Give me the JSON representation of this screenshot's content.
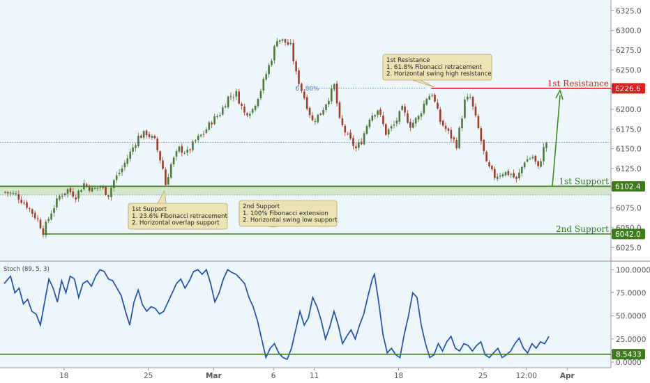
{
  "chart_data": {
    "type": "candlestick",
    "price_axis": {
      "ylim": [
        6012,
        6335
      ],
      "ticks": [
        6025.0,
        6050.0,
        6075.0,
        6100.0,
        6125.0,
        6150.0,
        6175.0,
        6200.0,
        6225.0,
        6250.0,
        6275.0,
        6300.0,
        6325.0
      ],
      "tick_labels": [
        "6025.0",
        "6050.0",
        "6075.0",
        "6100.0",
        "6125.0",
        "6150.0",
        "6175.0",
        "6200.0",
        "6225.0",
        "6250.0",
        "6275.0",
        "6300.0",
        "6325.0"
      ]
    },
    "x_axis": {
      "n_bars": 215,
      "labels": [
        {
          "text": "18",
          "bar": 22,
          "bold": false
        },
        {
          "text": "25",
          "bar": 53,
          "bold": false
        },
        {
          "text": "Mar",
          "bar": 77,
          "bold": true
        },
        {
          "text": "6",
          "bar": 99,
          "bold": false
        },
        {
          "text": "11",
          "bar": 114,
          "bold": false
        },
        {
          "text": "18",
          "bar": 145,
          "bold": false
        },
        {
          "text": "25",
          "bar": 176,
          "bold": false
        },
        {
          "text": "12:00",
          "bar": 192,
          "bold": false
        },
        {
          "text": "Apr",
          "bar": 207,
          "bold": true
        }
      ]
    },
    "price_path": [
      [
        0,
        6095
      ],
      [
        4,
        6092
      ],
      [
        8,
        6078
      ],
      [
        12,
        6060
      ],
      [
        14,
        6045
      ],
      [
        17,
        6070
      ],
      [
        20,
        6090
      ],
      [
        23,
        6098
      ],
      [
        26,
        6090
      ],
      [
        29,
        6106
      ],
      [
        32,
        6098
      ],
      [
        35,
        6102
      ],
      [
        38,
        6092
      ],
      [
        40,
        6110
      ],
      [
        43,
        6125
      ],
      [
        46,
        6145
      ],
      [
        49,
        6165
      ],
      [
        52,
        6170
      ],
      [
        55,
        6160
      ],
      [
        58,
        6125
      ],
      [
        59,
        6105
      ],
      [
        61,
        6130
      ],
      [
        64,
        6150
      ],
      [
        67,
        6145
      ],
      [
        70,
        6160
      ],
      [
        73,
        6170
      ],
      [
        76,
        6185
      ],
      [
        79,
        6195
      ],
      [
        82,
        6215
      ],
      [
        85,
        6220
      ],
      [
        88,
        6195
      ],
      [
        91,
        6200
      ],
      [
        94,
        6225
      ],
      [
        96,
        6245
      ],
      [
        98,
        6265
      ],
      [
        100,
        6290
      ],
      [
        103,
        6285
      ],
      [
        105,
        6280
      ],
      [
        107,
        6245
      ],
      [
        110,
        6215
      ],
      [
        113,
        6185
      ],
      [
        116,
        6195
      ],
      [
        119,
        6215
      ],
      [
        121,
        6230
      ],
      [
        123,
        6185
      ],
      [
        126,
        6165
      ],
      [
        129,
        6150
      ],
      [
        131,
        6160
      ],
      [
        134,
        6190
      ],
      [
        137,
        6200
      ],
      [
        140,
        6170
      ],
      [
        143,
        6180
      ],
      [
        146,
        6200
      ],
      [
        149,
        6180
      ],
      [
        152,
        6190
      ],
      [
        155,
        6215
      ],
      [
        157,
        6220
      ],
      [
        160,
        6185
      ],
      [
        163,
        6170
      ],
      [
        166,
        6155
      ],
      [
        169,
        6210
      ],
      [
        171,
        6215
      ],
      [
        174,
        6175
      ],
      [
        177,
        6130
      ],
      [
        180,
        6115
      ],
      [
        183,
        6120
      ],
      [
        186,
        6118
      ],
      [
        188,
        6110
      ],
      [
        191,
        6135
      ],
      [
        194,
        6140
      ],
      [
        196,
        6125
      ],
      [
        198,
        6150
      ],
      [
        199,
        6158
      ]
    ],
    "stoch": {
      "name": "Stoch (89, 5, 3)",
      "ylim": [
        -3,
        107
      ],
      "ticks": [
        0.0,
        25.0,
        50.0,
        75.0,
        100.0
      ],
      "tick_labels": [
        "0.0000",
        "25.0000",
        "50.0000",
        "75.0000",
        "100.0000"
      ],
      "current": "8.5433",
      "level": 8.5433,
      "path": [
        [
          0,
          85
        ],
        [
          3,
          93
        ],
        [
          5,
          75
        ],
        [
          7,
          80
        ],
        [
          9,
          63
        ],
        [
          11,
          68
        ],
        [
          13,
          55
        ],
        [
          15,
          52
        ],
        [
          17,
          40
        ],
        [
          19,
          65
        ],
        [
          21,
          90
        ],
        [
          23,
          80
        ],
        [
          25,
          65
        ],
        [
          27,
          88
        ],
        [
          29,
          75
        ],
        [
          31,
          93
        ],
        [
          33,
          90
        ],
        [
          35,
          70
        ],
        [
          37,
          85
        ],
        [
          39,
          88
        ],
        [
          41,
          82
        ],
        [
          43,
          93
        ],
        [
          45,
          100
        ],
        [
          47,
          98
        ],
        [
          49,
          90
        ],
        [
          51,
          88
        ],
        [
          53,
          80
        ],
        [
          55,
          72
        ],
        [
          57,
          55
        ],
        [
          59,
          40
        ],
        [
          61,
          65
        ],
        [
          63,
          78
        ],
        [
          65,
          62
        ],
        [
          67,
          55
        ],
        [
          69,
          60
        ],
        [
          71,
          58
        ],
        [
          73,
          52
        ],
        [
          75,
          55
        ],
        [
          77,
          65
        ],
        [
          79,
          75
        ],
        [
          81,
          85
        ],
        [
          83,
          90
        ],
        [
          85,
          80
        ],
        [
          87,
          88
        ],
        [
          89,
          98
        ],
        [
          91,
          100
        ],
        [
          93,
          95
        ],
        [
          95,
          100
        ],
        [
          97,
          85
        ],
        [
          99,
          65
        ],
        [
          101,
          75
        ],
        [
          103,
          90
        ],
        [
          105,
          100
        ],
        [
          107,
          97
        ],
        [
          109,
          95
        ],
        [
          111,
          90
        ],
        [
          113,
          85
        ],
        [
          115,
          70
        ],
        [
          117,
          60
        ],
        [
          119,
          45
        ],
        [
          121,
          25
        ],
        [
          123,
          5
        ],
        [
          125,
          15
        ],
        [
          127,
          20
        ],
        [
          129,
          10
        ],
        [
          131,
          5
        ],
        [
          133,
          3
        ],
        [
          135,
          15
        ],
        [
          137,
          35
        ],
        [
          139,
          55
        ],
        [
          141,
          40
        ],
        [
          143,
          48
        ],
        [
          145,
          70
        ],
        [
          147,
          60
        ],
        [
          149,
          45
        ],
        [
          151,
          25
        ],
        [
          153,
          38
        ],
        [
          155,
          55
        ],
        [
          157,
          40
        ],
        [
          159,
          20
        ],
        [
          161,
          28
        ],
        [
          163,
          35
        ],
        [
          165,
          25
        ],
        [
          167,
          40
        ],
        [
          169,
          52
        ],
        [
          171,
          72
        ],
        [
          173,
          90
        ],
        [
          174,
          95
        ],
        [
          176,
          65
        ],
        [
          178,
          30
        ],
        [
          180,
          10
        ],
        [
          182,
          15
        ],
        [
          184,
          8
        ],
        [
          186,
          5
        ],
        [
          188,
          30
        ],
        [
          190,
          50
        ],
        [
          192,
          75
        ],
        [
          194,
          70
        ],
        [
          196,
          40
        ],
        [
          198,
          20
        ],
        [
          200,
          5
        ],
        [
          202,
          8
        ],
        [
          204,
          20
        ],
        [
          206,
          12
        ],
        [
          208,
          22
        ],
        [
          210,
          28
        ],
        [
          212,
          15
        ],
        [
          214,
          12
        ],
        [
          216,
          20
        ],
        [
          218,
          18
        ],
        [
          220,
          12
        ],
        [
          222,
          18
        ],
        [
          224,
          22
        ],
        [
          226,
          8
        ],
        [
          228,
          5
        ],
        [
          230,
          10
        ],
        [
          232,
          15
        ],
        [
          234,
          5
        ],
        [
          236,
          8
        ],
        [
          238,
          12
        ],
        [
          240,
          20
        ],
        [
          242,
          26
        ],
        [
          244,
          15
        ],
        [
          246,
          10
        ],
        [
          248,
          20
        ],
        [
          250,
          15
        ],
        [
          252,
          22
        ],
        [
          254,
          20
        ],
        [
          256,
          28
        ]
      ]
    },
    "levels": [
      {
        "name": "1st Resistance",
        "value": 6226.6,
        "label": "6226.6",
        "color": "#e01e1e"
      },
      {
        "name": "1st Support",
        "value": 6102.4,
        "label": "6102.4",
        "color": "#3c7a1a"
      },
      {
        "name": "2nd Support",
        "value": 6042.0,
        "label": "6042.0",
        "color": "#3c7a1a"
      }
    ],
    "fib_label": "61.80%",
    "annotations": [
      {
        "title": "1st Resistance",
        "lines": [
          "1. 61.8% Fibonacci retracement",
          "2. Horizontal swing high resistance"
        ]
      },
      {
        "title": "1st Support",
        "lines": [
          "1. 23.6% Fibonacci retracement",
          "2. Horizontal overlap support"
        ]
      },
      {
        "title": "2nd Support",
        "lines": [
          "1. 100% Fibonacci extension",
          "2. Horizontal swing low support"
        ]
      }
    ],
    "colors": {
      "up": "#4b7a3a",
      "down": "#a33a2a",
      "stoch_line": "#1f4fb0",
      "note_fill": "#ece3b4",
      "note_border": "#b8a35a",
      "support_zone": "#cfe5c6"
    }
  }
}
